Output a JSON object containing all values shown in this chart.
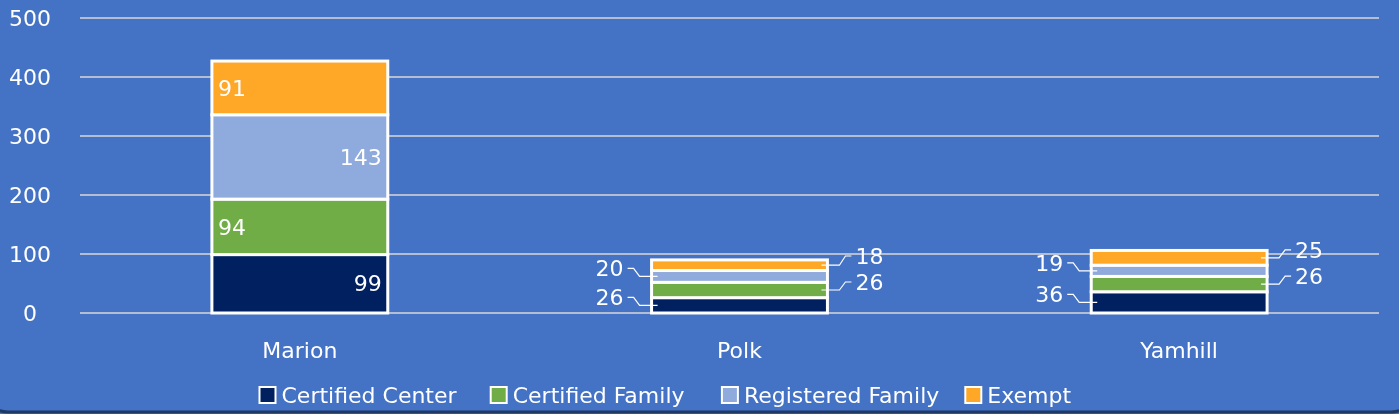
{
  "chart_data": {
    "type": "bar",
    "stacked": true,
    "categories": [
      "Marion",
      "Polk",
      "Yamhill"
    ],
    "series": [
      {
        "name": "Certified Center",
        "color": "#002060",
        "values": [
          99,
          26,
          36
        ]
      },
      {
        "name": "Certified Family",
        "color": "#70ad47",
        "values": [
          94,
          26,
          26
        ]
      },
      {
        "name": "Registered Family",
        "color": "#8faadc",
        "values": [
          143,
          20,
          19
        ]
      },
      {
        "name": "Exempt",
        "color": "#ffa726",
        "values": [
          91,
          18,
          25
        ]
      }
    ],
    "ylim": [
      0,
      500
    ],
    "yticks": [
      0,
      100,
      200,
      300,
      400,
      500
    ],
    "grid": "y",
    "legend": "bottom",
    "data_labels": true
  }
}
